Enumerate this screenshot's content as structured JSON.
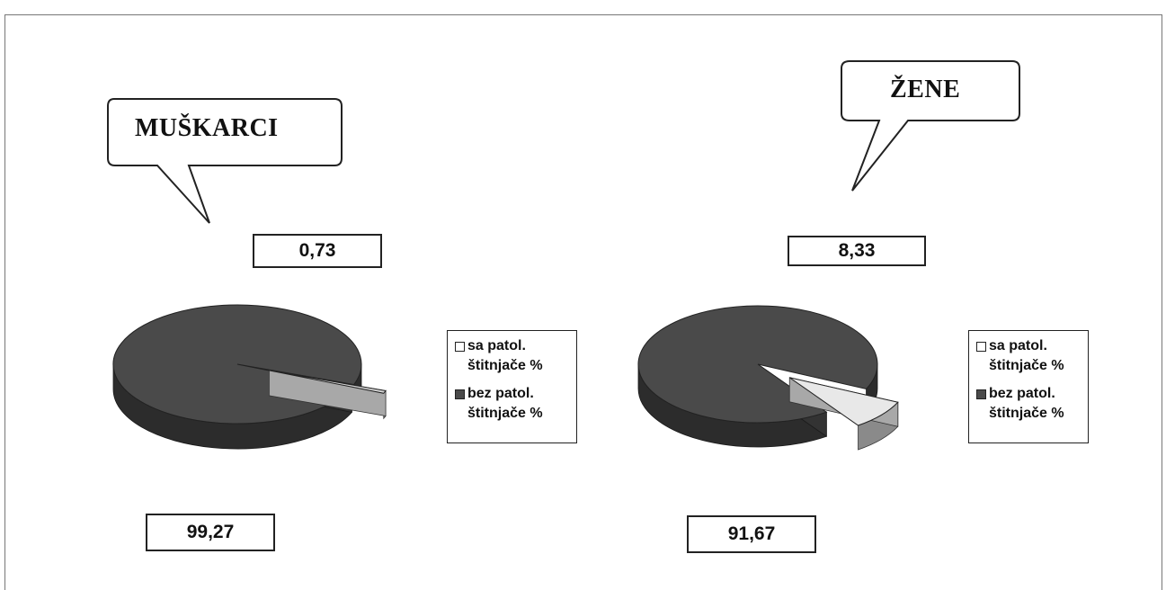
{
  "chart_data": [
    {
      "type": "pie",
      "title": "MUŠKARCI",
      "labels": [
        "sa patol. štitnjače %",
        "bez patol. štitnjače %"
      ],
      "values": [
        0.73,
        99.27
      ],
      "data_labels": [
        "0,73",
        "99,27"
      ],
      "colors": [
        "#d4d4d4",
        "#4a4a4a"
      ],
      "legend_position": "right"
    },
    {
      "type": "pie",
      "title": "ŽENE",
      "labels": [
        "sa patol. štitnjače %",
        "bez patol. štitnjače %"
      ],
      "values": [
        8.33,
        91.67
      ],
      "data_labels": [
        "8,33",
        "91,67"
      ],
      "colors": [
        "#e8e8e8",
        "#4a4a4a"
      ],
      "legend_position": "right"
    }
  ],
  "legend": {
    "items": [
      {
        "label": "sa patol.\nštitnjače %",
        "color": "#ffffff"
      },
      {
        "label": "bez patol.\nštitnjače %",
        "color": "#4a4a4a"
      }
    ]
  }
}
